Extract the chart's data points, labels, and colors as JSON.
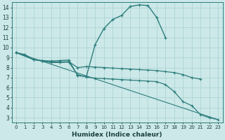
{
  "xlabel": "Humidex (Indice chaleur)",
  "xlim": [
    -0.5,
    23.5
  ],
  "ylim": [
    2.5,
    14.5
  ],
  "xticks": [
    0,
    1,
    2,
    3,
    4,
    5,
    6,
    7,
    8,
    9,
    10,
    11,
    12,
    13,
    14,
    15,
    16,
    17,
    18,
    19,
    20,
    21,
    22,
    23
  ],
  "yticks": [
    3,
    4,
    5,
    6,
    7,
    8,
    9,
    10,
    11,
    12,
    13,
    14
  ],
  "bg_color": "#cce8e8",
  "grid_color": "#aed4d4",
  "line_color": "#2d7d7d",
  "curve1_x": [
    0,
    1,
    2,
    3,
    4,
    5,
    6,
    7,
    8,
    9,
    10,
    11,
    12,
    13,
    14,
    15,
    16,
    17
  ],
  "curve1_y": [
    9.5,
    9.3,
    8.8,
    8.7,
    8.65,
    8.7,
    8.75,
    7.2,
    7.1,
    10.3,
    11.9,
    12.8,
    13.2,
    14.1,
    14.25,
    14.2,
    13.0,
    11.0
  ],
  "curve2_x": [
    0,
    2,
    3,
    4,
    5,
    6,
    7,
    8,
    9,
    10,
    11,
    12,
    13,
    14,
    15,
    16,
    17,
    18,
    19,
    20,
    21
  ],
  "curve2_y": [
    9.5,
    8.8,
    8.65,
    8.55,
    8.55,
    8.6,
    8.0,
    8.1,
    8.05,
    8.0,
    7.95,
    7.9,
    7.85,
    7.8,
    7.75,
    7.7,
    7.6,
    7.5,
    7.3,
    7.0,
    6.85
  ],
  "curve3_x": [
    0,
    2,
    3,
    4,
    5,
    6,
    7,
    8,
    9,
    10,
    11,
    12,
    13,
    14,
    15,
    16,
    17,
    18,
    19,
    20,
    21,
    22,
    23
  ],
  "curve3_y": [
    9.5,
    8.8,
    8.65,
    8.5,
    8.5,
    8.55,
    7.3,
    7.05,
    6.95,
    6.9,
    6.85,
    6.8,
    6.75,
    6.7,
    6.65,
    6.6,
    6.3,
    5.6,
    4.6,
    4.2,
    3.3,
    3.0,
    2.8
  ],
  "curve4_x": [
    0,
    23
  ],
  "curve4_y": [
    9.5,
    2.8
  ]
}
